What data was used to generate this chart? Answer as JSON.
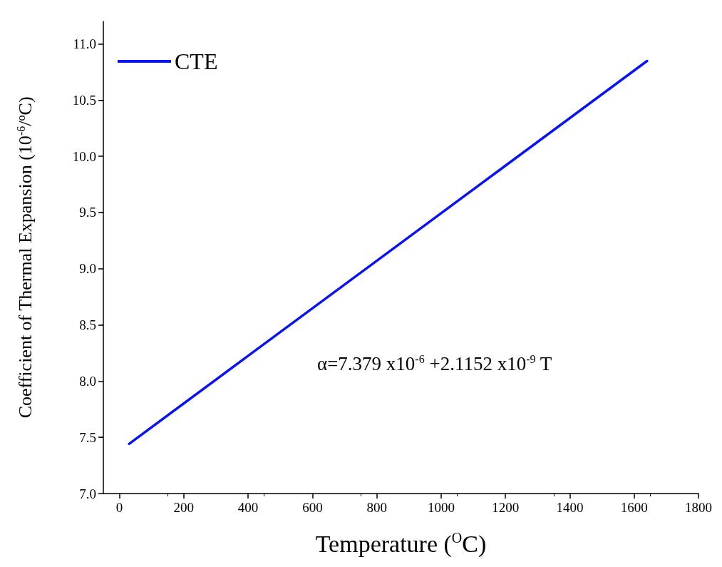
{
  "chart_data": {
    "type": "line",
    "xlabel": "Temperature ($^{O}$C)",
    "ylabel": "Coefficient of Thermal Expansion (10$^{-6}$/$^{o}$C)",
    "x": [
      30,
      400,
      800,
      1200,
      1640
    ],
    "series": [
      {
        "name": "CTE",
        "color": "#0a14f0",
        "values": [
          7.442,
          8.225,
          9.071,
          9.917,
          10.848
        ]
      }
    ],
    "xlim": [
      -50,
      1800
    ],
    "xticks": [
      0,
      200,
      400,
      600,
      800,
      1000,
      1200,
      1400,
      1600,
      1800
    ],
    "ylim": [
      7,
      11.2
    ],
    "yticks": [
      {
        "value": 7,
        "label": "7.0"
      },
      {
        "value": 7.5,
        "label": "7.5"
      },
      {
        "value": 8,
        "label": "8.0"
      },
      {
        "value": 8.5,
        "label": "8.5"
      },
      {
        "value": 9,
        "label": "9.0"
      },
      {
        "value": 9.5,
        "label": "9.5"
      },
      {
        "value": 10,
        "label": "10.0"
      },
      {
        "value": 10.5,
        "label": "10.5"
      },
      {
        "value": 11,
        "label": "11.0"
      }
    ],
    "annotations": [
      "α=7.379 x10$^{-6}$ +2.1152 x10$^{-9}$ T"
    ],
    "legend": "top left",
    "grid": false,
    "marker": "none",
    "line_style": "solid"
  }
}
